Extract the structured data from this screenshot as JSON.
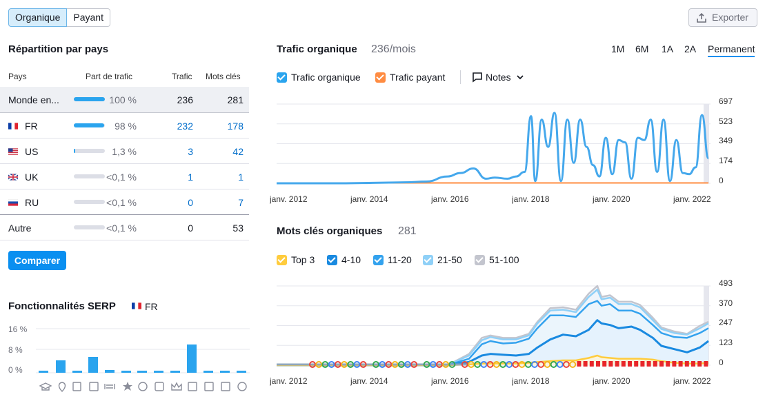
{
  "toggle": {
    "organic": "Organique",
    "paid": "Payant"
  },
  "export_label": "Exporter",
  "countries": {
    "title": "Répartition par pays",
    "headers": {
      "country": "Pays",
      "share": "Part de trafic",
      "traffic": "Trafic",
      "keywords": "Mots clés"
    },
    "rows": [
      {
        "name": "Monde en...",
        "share_pct": 100,
        "share": "100 %",
        "traffic": "236",
        "keywords": "281"
      },
      {
        "name": "FR",
        "flag": "fr-flag-icon",
        "share_pct": 98,
        "share": "98 %",
        "traffic": "232",
        "keywords": "178"
      },
      {
        "name": "US",
        "flag": "us-flag-icon",
        "share_pct": 1.3,
        "share": "1,3 %",
        "traffic": "3",
        "keywords": "42"
      },
      {
        "name": "UK",
        "flag": "uk-flag-icon",
        "share_pct": 0.1,
        "share": "<0,1 %",
        "traffic": "1",
        "keywords": "1"
      },
      {
        "name": "RU",
        "flag": "ru-flag-icon",
        "share_pct": 0.1,
        "share": "<0,1 %",
        "traffic": "0",
        "keywords": "7"
      },
      {
        "name": "Autre",
        "share_pct": 0.1,
        "share": "<0,1 %",
        "traffic": "0",
        "keywords": "53"
      }
    ],
    "compare_label": "Comparer"
  },
  "serp": {
    "title": "Fonctionnalités SERP",
    "country": "FR",
    "y_ticks": [
      "16 %",
      "8 %",
      "0 %"
    ],
    "icons": [
      "graduation-cap-icon",
      "location-pin-icon",
      "news-icon",
      "image-pack-icon",
      "link-icon",
      "star-icon",
      "video-icon",
      "featured-video-icon",
      "crown-icon",
      "image-icon",
      "faq-icon",
      "question-icon"
    ]
  },
  "traffic_chart": {
    "title": "Trafic organique",
    "count": "236/mois",
    "periods": [
      "1M",
      "6M",
      "1A",
      "2A",
      "Permanent"
    ],
    "active_period": "Permanent",
    "legend": {
      "organic": "Trafic organique",
      "paid": "Trafic payant",
      "notes": "Notes"
    },
    "colors": {
      "organic": "#45a8ec",
      "paid": "#ff8c42"
    }
  },
  "keywords_chart": {
    "title": "Mots clés organiques",
    "count": "281",
    "legend": [
      "Top 3",
      "4-10",
      "11-20",
      "21-50",
      "51-100"
    ],
    "colors": {
      "top3": "#ffcc3d",
      "kw4_10": "#1a8ae0",
      "kw11_20": "#33a2ee",
      "kw21_50": "#8fd0f7",
      "kw51_100": "#c3c5ce"
    }
  },
  "chart_data": [
    {
      "type": "line",
      "ylim": [
        0,
        697
      ],
      "y_ticks": [
        "697",
        "523",
        "349",
        "174",
        "0"
      ],
      "x_ticks": [
        "janv. 2012",
        "janv. 2014",
        "janv. 2016",
        "janv. 2018",
        "janv. 2020",
        "janv. 2022"
      ],
      "grid": true,
      "series": [
        {
          "name": "Trafic organique",
          "x": [
            2012,
            2012.5,
            2013,
            2013.5,
            2014,
            2014.5,
            2015,
            2015.5,
            2016,
            2016.3,
            2016.6,
            2016.9,
            2017.1,
            2017.4,
            2017.6,
            2017.8,
            2017.95,
            2018.05,
            2018.2,
            2018.35,
            2018.5,
            2018.65,
            2018.8,
            2018.95,
            2019.1,
            2019.25,
            2019.4,
            2019.55,
            2019.7,
            2019.85,
            2020,
            2020.15,
            2020.3,
            2020.45,
            2020.6,
            2020.75,
            2020.9,
            2021.05,
            2021.2,
            2021.35,
            2021.5,
            2021.65,
            2021.8,
            2021.95,
            2022.1
          ],
          "values": [
            0,
            0,
            0,
            0,
            2,
            5,
            8,
            15,
            60,
            90,
            130,
            40,
            50,
            40,
            60,
            100,
            590,
            20,
            560,
            320,
            620,
            20,
            560,
            180,
            560,
            320,
            160,
            60,
            400,
            80,
            380,
            360,
            40,
            400,
            380,
            560,
            100,
            560,
            20,
            380,
            90,
            80,
            140,
            600,
            220
          ]
        },
        {
          "name": "Trafic payant",
          "x": [
            2012,
            2022.1
          ],
          "values": [
            0,
            0
          ]
        }
      ]
    },
    {
      "type": "area",
      "ylim": [
        0,
        493
      ],
      "y_ticks": [
        "493",
        "370",
        "247",
        "123",
        "0"
      ],
      "x_ticks": [
        "janv. 2012",
        "janv. 2014",
        "janv. 2016",
        "janv. 2018",
        "janv. 2020",
        "janv. 2022"
      ],
      "grid": true,
      "x": [
        2012,
        2014,
        2016,
        2016.5,
        2016.8,
        2017,
        2017.3,
        2017.6,
        2017.9,
        2018.1,
        2018.4,
        2018.7,
        2019,
        2019.3,
        2019.5,
        2019.6,
        2019.8,
        2020,
        2020.3,
        2020.5,
        2020.8,
        2021,
        2021.3,
        2021.6,
        2021.9,
        2022.1
      ],
      "series": [
        {
          "name": "Top 3",
          "values": [
            0,
            0,
            0,
            5,
            10,
            10,
            10,
            10,
            15,
            20,
            25,
            30,
            30,
            45,
            60,
            50,
            45,
            40,
            40,
            40,
            35,
            25,
            15,
            10,
            10,
            15
          ]
        },
        {
          "name": "4-10",
          "values": [
            0,
            0,
            0,
            20,
            60,
            70,
            65,
            60,
            70,
            110,
            160,
            190,
            180,
            220,
            280,
            260,
            250,
            230,
            240,
            220,
            170,
            120,
            100,
            80,
            110,
            150
          ]
        },
        {
          "name": "11-20",
          "values": [
            0,
            0,
            0,
            40,
            130,
            150,
            135,
            140,
            165,
            230,
            310,
            310,
            300,
            380,
            400,
            370,
            380,
            340,
            340,
            320,
            250,
            200,
            175,
            170,
            200,
            230
          ]
        },
        {
          "name": "21-50",
          "values": [
            0,
            0,
            0,
            60,
            155,
            175,
            160,
            160,
            185,
            260,
            340,
            345,
            330,
            425,
            470,
            410,
            420,
            380,
            380,
            360,
            280,
            225,
            200,
            190,
            230,
            260
          ]
        },
        {
          "name": "51-100",
          "values": [
            0,
            0,
            0,
            70,
            170,
            185,
            170,
            170,
            195,
            270,
            355,
            360,
            345,
            445,
            493,
            425,
            435,
            395,
            395,
            375,
            295,
            235,
            210,
            195,
            245,
            270
          ]
        }
      ]
    }
  ]
}
